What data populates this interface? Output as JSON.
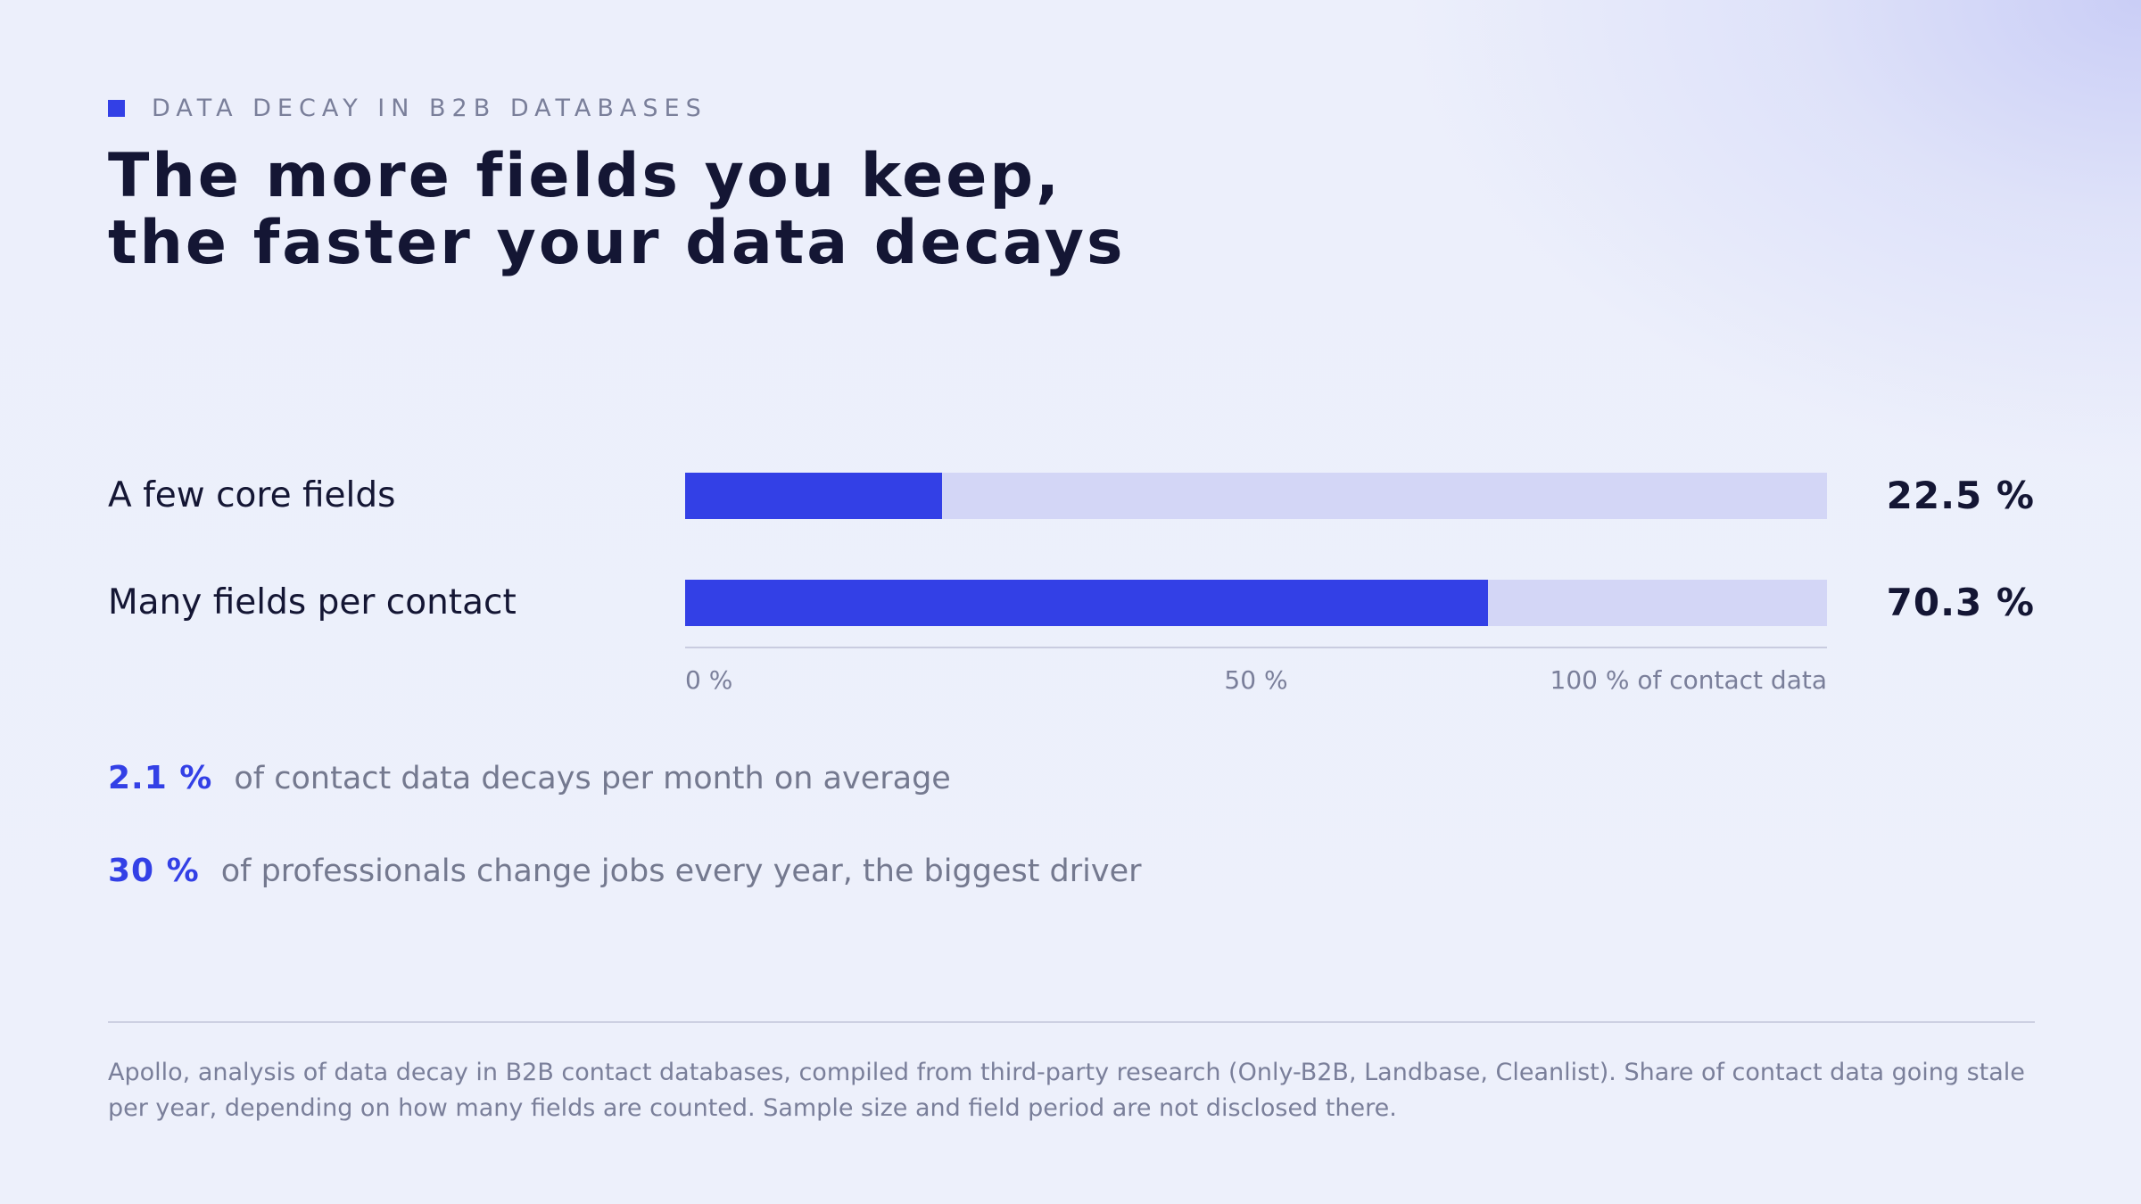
{
  "eyebrow": "DATA DECAY IN B2B DATABASES",
  "title_lines": [
    "The more fields you keep,",
    "the faster your data decays"
  ],
  "colors": {
    "accent": "#3340e6",
    "track": "#d3d6f6",
    "text_dark": "#141634",
    "text_muted": "#7a7f9a"
  },
  "chart_data": {
    "type": "bar",
    "orientation": "horizontal",
    "categories": [
      "A few core fields",
      "Many fields per contact"
    ],
    "values": [
      22.5,
      70.3
    ],
    "value_labels": [
      "22.5 %",
      "70.3 %"
    ],
    "xlim": [
      0,
      100
    ],
    "ticks": [
      {
        "value": 0,
        "label": "0 %"
      },
      {
        "value": 50,
        "label": "50 %"
      },
      {
        "value": 100,
        "label": "100 % of contact data"
      }
    ],
    "grid": false
  },
  "stats": [
    {
      "value": "2.1 %",
      "text": "of contact data decays per month on average"
    },
    {
      "value": "30 %",
      "text": "of professionals change jobs every year, the biggest driver"
    }
  ],
  "footnote": "Apollo, analysis of data decay in B2B contact databases, compiled from third-party research (Only-B2B, Landbase, Cleanlist). Share of contact data going stale per year, depending on how many fields are counted. Sample size and field period are not disclosed there."
}
